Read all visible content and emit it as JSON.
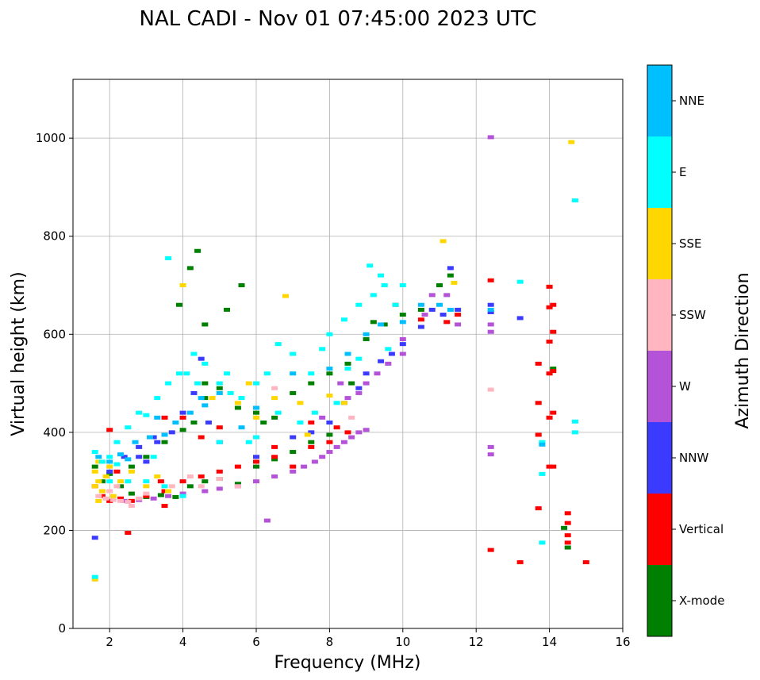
{
  "chart_data": {
    "type": "scatter",
    "title": "NAL CADI - Nov 01 07:45:00 2023 UTC",
    "xlabel": "Frequency (MHz)",
    "ylabel": "Virtual height (km)",
    "xlim": [
      1,
      16
    ],
    "ylim": [
      0,
      1120
    ],
    "xticks": [
      2,
      4,
      6,
      8,
      10,
      12,
      14,
      16
    ],
    "yticks": [
      0,
      200,
      400,
      600,
      800,
      1000
    ],
    "grid": true,
    "colorbar": {
      "label": "Azimuth Direction",
      "categories": [
        {
          "name": "X-mode",
          "color": "#008000"
        },
        {
          "name": "Vertical",
          "color": "#ff0000"
        },
        {
          "name": "NNW",
          "color": "#3b3bff"
        },
        {
          "name": "W",
          "color": "#b452d8"
        },
        {
          "name": "SSW",
          "color": "#ffb6c1"
        },
        {
          "name": "SSE",
          "color": "#ffd700"
        },
        {
          "name": "E",
          "color": "#00ffff"
        },
        {
          "name": "NNE",
          "color": "#00bfff"
        }
      ]
    },
    "series": [
      {
        "name": "X-mode",
        "points": [
          [
            1.6,
            330
          ],
          [
            1.8,
            300
          ],
          [
            2.0,
            315
          ],
          [
            2.3,
            290
          ],
          [
            2.6,
            275
          ],
          [
            3.0,
            268
          ],
          [
            3.4,
            272
          ],
          [
            3.8,
            268
          ],
          [
            4.2,
            290
          ],
          [
            4.6,
            300
          ],
          [
            5.0,
            305
          ],
          [
            5.5,
            295
          ],
          [
            6.0,
            330
          ],
          [
            6.5,
            345
          ],
          [
            7.0,
            360
          ],
          [
            7.5,
            380
          ],
          [
            8.0,
            395
          ],
          [
            2.6,
            330
          ],
          [
            3.0,
            350
          ],
          [
            3.5,
            380
          ],
          [
            4.0,
            405
          ],
          [
            4.3,
            420
          ],
          [
            4.6,
            470
          ],
          [
            4.6,
            500
          ],
          [
            5.0,
            490
          ],
          [
            5.5,
            450
          ],
          [
            6.0,
            440
          ],
          [
            6.5,
            430
          ],
          [
            7.0,
            480
          ],
          [
            7.5,
            500
          ],
          [
            8.0,
            520
          ],
          [
            8.5,
            540
          ],
          [
            9.0,
            590
          ],
          [
            9.5,
            620
          ],
          [
            10.0,
            640
          ],
          [
            10.5,
            650
          ],
          [
            11.0,
            700
          ],
          [
            11.3,
            720
          ],
          [
            4.2,
            735
          ],
          [
            4.4,
            770
          ],
          [
            3.9,
            660
          ],
          [
            4.6,
            620
          ],
          [
            5.2,
            650
          ],
          [
            5.6,
            700
          ],
          [
            6.2,
            420
          ],
          [
            14.1,
            530
          ],
          [
            14.4,
            205
          ],
          [
            14.5,
            165
          ],
          [
            9.2,
            625
          ],
          [
            8.6,
            500
          ]
        ]
      },
      {
        "name": "Vertical",
        "points": [
          [
            1.6,
            290
          ],
          [
            1.8,
            270
          ],
          [
            2.0,
            260
          ],
          [
            2.3,
            265
          ],
          [
            2.6,
            260
          ],
          [
            3.0,
            270
          ],
          [
            3.5,
            280
          ],
          [
            4.0,
            300
          ],
          [
            4.5,
            310
          ],
          [
            5.0,
            320
          ],
          [
            5.5,
            330
          ],
          [
            6.0,
            340
          ],
          [
            6.5,
            350
          ],
          [
            7.0,
            330
          ],
          [
            7.5,
            370
          ],
          [
            8.0,
            380
          ],
          [
            8.5,
            400
          ],
          [
            2.0,
            405
          ],
          [
            2.5,
            195
          ],
          [
            3.5,
            430
          ],
          [
            4.0,
            430
          ],
          [
            4.5,
            390
          ],
          [
            5.0,
            410
          ],
          [
            6.5,
            370
          ],
          [
            7.5,
            420
          ],
          [
            8.2,
            410
          ],
          [
            3.4,
            300
          ],
          [
            2.2,
            320
          ],
          [
            9.8,
            660
          ],
          [
            10.5,
            630
          ],
          [
            11.2,
            625
          ],
          [
            11.5,
            640
          ],
          [
            12.4,
            710
          ],
          [
            12.4,
            160
          ],
          [
            13.2,
            135
          ],
          [
            13.7,
            540
          ],
          [
            13.7,
            245
          ],
          [
            13.7,
            460
          ],
          [
            13.7,
            395
          ],
          [
            14.0,
            330
          ],
          [
            14.1,
            330
          ],
          [
            14.0,
            430
          ],
          [
            14.1,
            440
          ],
          [
            14.0,
            520
          ],
          [
            14.1,
            525
          ],
          [
            14.0,
            585
          ],
          [
            14.1,
            605
          ],
          [
            14.0,
            655
          ],
          [
            14.1,
            660
          ],
          [
            14.0,
            697
          ],
          [
            14.5,
            235
          ],
          [
            14.5,
            215
          ],
          [
            14.5,
            190
          ],
          [
            14.5,
            175
          ],
          [
            15.0,
            135
          ],
          [
            3.5,
            250
          ]
        ]
      },
      {
        "name": "NNW",
        "points": [
          [
            1.6,
            185
          ],
          [
            2.0,
            320
          ],
          [
            2.4,
            350
          ],
          [
            2.8,
            370
          ],
          [
            3.2,
            390
          ],
          [
            3.7,
            400
          ],
          [
            4.0,
            440
          ],
          [
            4.3,
            480
          ],
          [
            4.5,
            550
          ],
          [
            5.0,
            380
          ],
          [
            6.0,
            350
          ],
          [
            7.0,
            390
          ],
          [
            7.5,
            400
          ],
          [
            8.0,
            420
          ],
          [
            8.4,
            460
          ],
          [
            8.8,
            490
          ],
          [
            9.0,
            520
          ],
          [
            9.4,
            545
          ],
          [
            9.7,
            560
          ],
          [
            10.0,
            580
          ],
          [
            10.5,
            615
          ],
          [
            10.8,
            650
          ],
          [
            11.1,
            640
          ],
          [
            11.3,
            735
          ],
          [
            11.5,
            650
          ],
          [
            12.4,
            645
          ],
          [
            12.4,
            660
          ],
          [
            13.2,
            633
          ],
          [
            2.8,
            350
          ],
          [
            3.3,
            380
          ],
          [
            4.7,
            420
          ],
          [
            3.0,
            340
          ]
        ]
      },
      {
        "name": "W",
        "points": [
          [
            2.4,
            260
          ],
          [
            2.8,
            262
          ],
          [
            3.2,
            265
          ],
          [
            3.6,
            270
          ],
          [
            4.0,
            275
          ],
          [
            4.6,
            280
          ],
          [
            5.0,
            285
          ],
          [
            5.5,
            290
          ],
          [
            6.0,
            300
          ],
          [
            6.5,
            310
          ],
          [
            7.0,
            320
          ],
          [
            7.3,
            330
          ],
          [
            7.6,
            340
          ],
          [
            7.8,
            350
          ],
          [
            8.0,
            360
          ],
          [
            8.2,
            370
          ],
          [
            8.4,
            380
          ],
          [
            8.6,
            390
          ],
          [
            8.8,
            400
          ],
          [
            9.0,
            405
          ],
          [
            8.5,
            470
          ],
          [
            8.8,
            480
          ],
          [
            9.0,
            500
          ],
          [
            9.3,
            520
          ],
          [
            9.6,
            540
          ],
          [
            10.0,
            560
          ],
          [
            10.0,
            590
          ],
          [
            6.3,
            220
          ],
          [
            10.6,
            640
          ],
          [
            10.8,
            680
          ],
          [
            11.2,
            680
          ],
          [
            11.5,
            620
          ],
          [
            12.4,
            1002
          ],
          [
            12.4,
            370
          ],
          [
            12.4,
            355
          ],
          [
            12.4,
            620
          ],
          [
            12.4,
            605
          ],
          [
            8.3,
            500
          ],
          [
            7.8,
            430
          ]
        ]
      },
      {
        "name": "SSW",
        "points": [
          [
            1.7,
            270
          ],
          [
            1.9,
            265
          ],
          [
            2.1,
            262
          ],
          [
            2.3,
            260
          ],
          [
            2.5,
            258
          ],
          [
            2.6,
            250
          ],
          [
            2.8,
            265
          ],
          [
            3.0,
            275
          ],
          [
            2.0,
            280
          ],
          [
            2.2,
            290
          ],
          [
            5.5,
            290
          ],
          [
            5.0,
            305
          ],
          [
            4.5,
            290
          ],
          [
            6.5,
            490
          ],
          [
            8.6,
            430
          ],
          [
            12.4,
            487
          ],
          [
            3.7,
            290
          ],
          [
            4.2,
            310
          ]
        ]
      },
      {
        "name": "SSE",
        "points": [
          [
            1.6,
            320
          ],
          [
            1.7,
            300
          ],
          [
            1.8,
            280
          ],
          [
            1.9,
            310
          ],
          [
            2.0,
            330
          ],
          [
            2.1,
            270
          ],
          [
            1.6,
            290
          ],
          [
            1.7,
            260
          ],
          [
            1.6,
            100
          ],
          [
            1.7,
            340
          ],
          [
            2.3,
            300
          ],
          [
            2.6,
            320
          ],
          [
            3.0,
            290
          ],
          [
            3.3,
            310
          ],
          [
            3.6,
            280
          ],
          [
            4.0,
            700
          ],
          [
            4.8,
            470
          ],
          [
            5.5,
            460
          ],
          [
            6.0,
            430
          ],
          [
            6.5,
            470
          ],
          [
            6.8,
            678
          ],
          [
            7.2,
            460
          ],
          [
            7.4,
            395
          ],
          [
            8.0,
            475
          ],
          [
            8.4,
            460
          ],
          [
            11.1,
            790
          ],
          [
            11.4,
            705
          ],
          [
            14.6,
            992
          ],
          [
            5.8,
            500
          ]
        ]
      },
      {
        "name": "E",
        "points": [
          [
            1.6,
            360
          ],
          [
            1.8,
            340
          ],
          [
            2.0,
            350
          ],
          [
            2.2,
            380
          ],
          [
            2.5,
            410
          ],
          [
            2.8,
            440
          ],
          [
            3.0,
            435
          ],
          [
            3.3,
            470
          ],
          [
            3.6,
            500
          ],
          [
            3.9,
            520
          ],
          [
            4.1,
            520
          ],
          [
            4.3,
            560
          ],
          [
            4.6,
            540
          ],
          [
            5.0,
            500
          ],
          [
            5.3,
            480
          ],
          [
            5.6,
            470
          ],
          [
            6.0,
            500
          ],
          [
            6.3,
            520
          ],
          [
            6.6,
            580
          ],
          [
            7.0,
            560
          ],
          [
            7.5,
            520
          ],
          [
            7.8,
            570
          ],
          [
            8.0,
            600
          ],
          [
            8.4,
            630
          ],
          [
            8.8,
            660
          ],
          [
            9.2,
            680
          ],
          [
            9.5,
            700
          ],
          [
            9.8,
            660
          ],
          [
            10.0,
            700
          ],
          [
            9.1,
            740
          ],
          [
            9.4,
            720
          ],
          [
            3.6,
            755
          ],
          [
            1.6,
            105
          ],
          [
            2.0,
            300
          ],
          [
            2.5,
            300
          ],
          [
            3.0,
            300
          ],
          [
            3.5,
            290
          ],
          [
            4.0,
            270
          ],
          [
            5.0,
            380
          ],
          [
            5.8,
            380
          ],
          [
            6.0,
            390
          ],
          [
            6.6,
            440
          ],
          [
            7.2,
            420
          ],
          [
            7.6,
            440
          ],
          [
            8.2,
            460
          ],
          [
            8.5,
            530
          ],
          [
            8.8,
            550
          ],
          [
            9.6,
            570
          ],
          [
            13.2,
            707
          ],
          [
            13.8,
            315
          ],
          [
            13.8,
            380
          ],
          [
            13.8,
            175
          ],
          [
            14.7,
            422
          ],
          [
            14.7,
            400
          ],
          [
            14.7,
            873
          ],
          [
            2.2,
            335
          ],
          [
            3.2,
            350
          ],
          [
            4.4,
            500
          ],
          [
            5.2,
            520
          ]
        ]
      },
      {
        "name": "NNE",
        "points": [
          [
            1.7,
            350
          ],
          [
            2.0,
            340
          ],
          [
            2.3,
            355
          ],
          [
            2.7,
            380
          ],
          [
            3.1,
            390
          ],
          [
            3.5,
            395
          ],
          [
            3.8,
            420
          ],
          [
            4.2,
            440
          ],
          [
            4.5,
            470
          ],
          [
            5.0,
            480
          ],
          [
            5.6,
            410
          ],
          [
            6.0,
            450
          ],
          [
            7.0,
            520
          ],
          [
            8.0,
            530
          ],
          [
            8.5,
            560
          ],
          [
            9.0,
            600
          ],
          [
            9.4,
            620
          ],
          [
            10.0,
            625
          ],
          [
            10.5,
            660
          ],
          [
            11.0,
            660
          ],
          [
            11.3,
            650
          ],
          [
            12.4,
            650
          ],
          [
            13.8,
            375
          ],
          [
            3.3,
            430
          ],
          [
            4.6,
            455
          ],
          [
            2.5,
            345
          ]
        ]
      }
    ]
  }
}
